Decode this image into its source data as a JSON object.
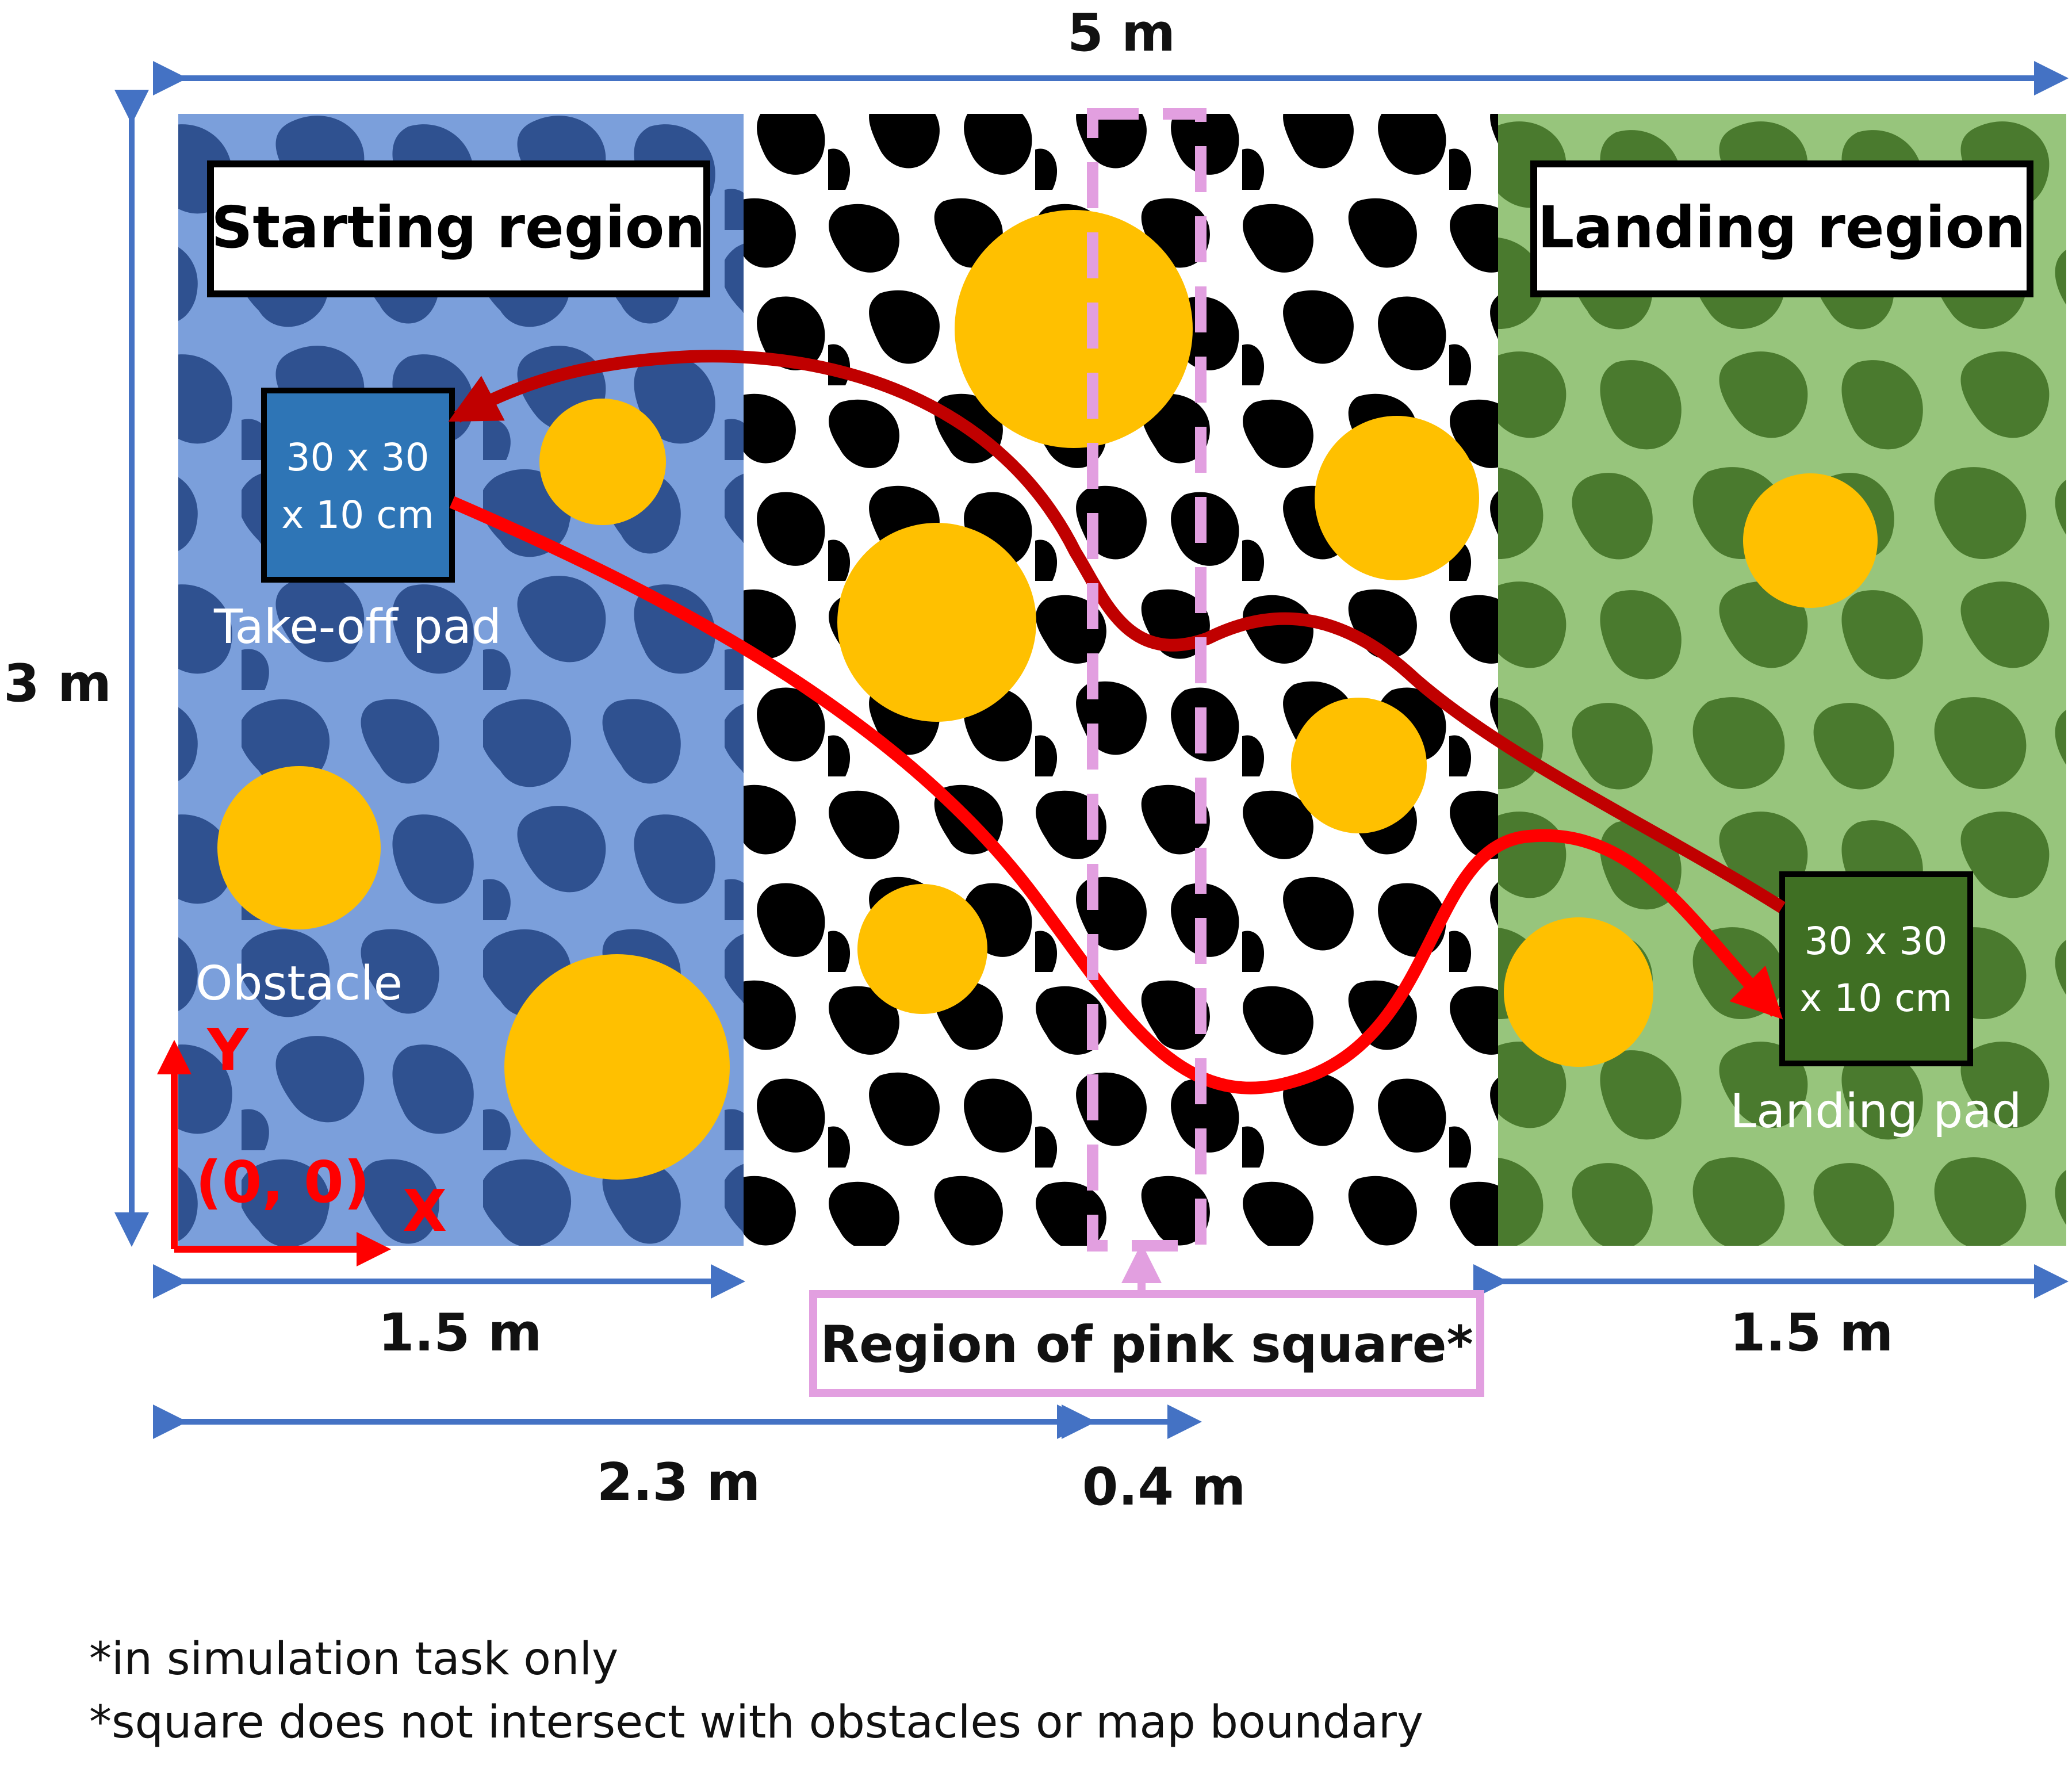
{
  "dimensions": {
    "total_width": "5 m",
    "total_height": "3 m",
    "start_width": "1.5 m",
    "landing_width": "1.5 m",
    "offset_to_square": "2.3 m",
    "square_width": "0.4 m"
  },
  "regions": {
    "start_label": "Starting region",
    "landing_label": "Landing region"
  },
  "pads": {
    "takeoff_size_line1": "30 x 30",
    "takeoff_size_line2": "x 10 cm",
    "takeoff_label": "Take-off pad",
    "landing_size_line1": "30 x 30",
    "landing_size_line2": "x 10 cm",
    "landing_label": "Landing pad"
  },
  "obstacle_label": "Obstacle",
  "axes": {
    "y_label": "Y",
    "x_label": "X",
    "origin_label": "(0, 0)"
  },
  "pink_square": {
    "label": "Region of pink square*"
  },
  "footnotes": [
    "*in simulation task only",
    "*square does not intersect with obstacles or map boundary"
  ],
  "colors": {
    "start_light": "#7b9fdb",
    "start_dark": "#2f5190",
    "middle_light": "#ffffff",
    "middle_dark": "#000000",
    "landing_light": "#97c57c",
    "landing_dark": "#4a7a2e",
    "obstacle": "#ffc000",
    "path_dark_red": "#c00000",
    "path_red": "#ff0000",
    "pink": "#e29fe0",
    "dimension_blue": "#4472c4",
    "takeoff_pad": "#2e75b6",
    "landing_pad": "#3f6f23"
  }
}
